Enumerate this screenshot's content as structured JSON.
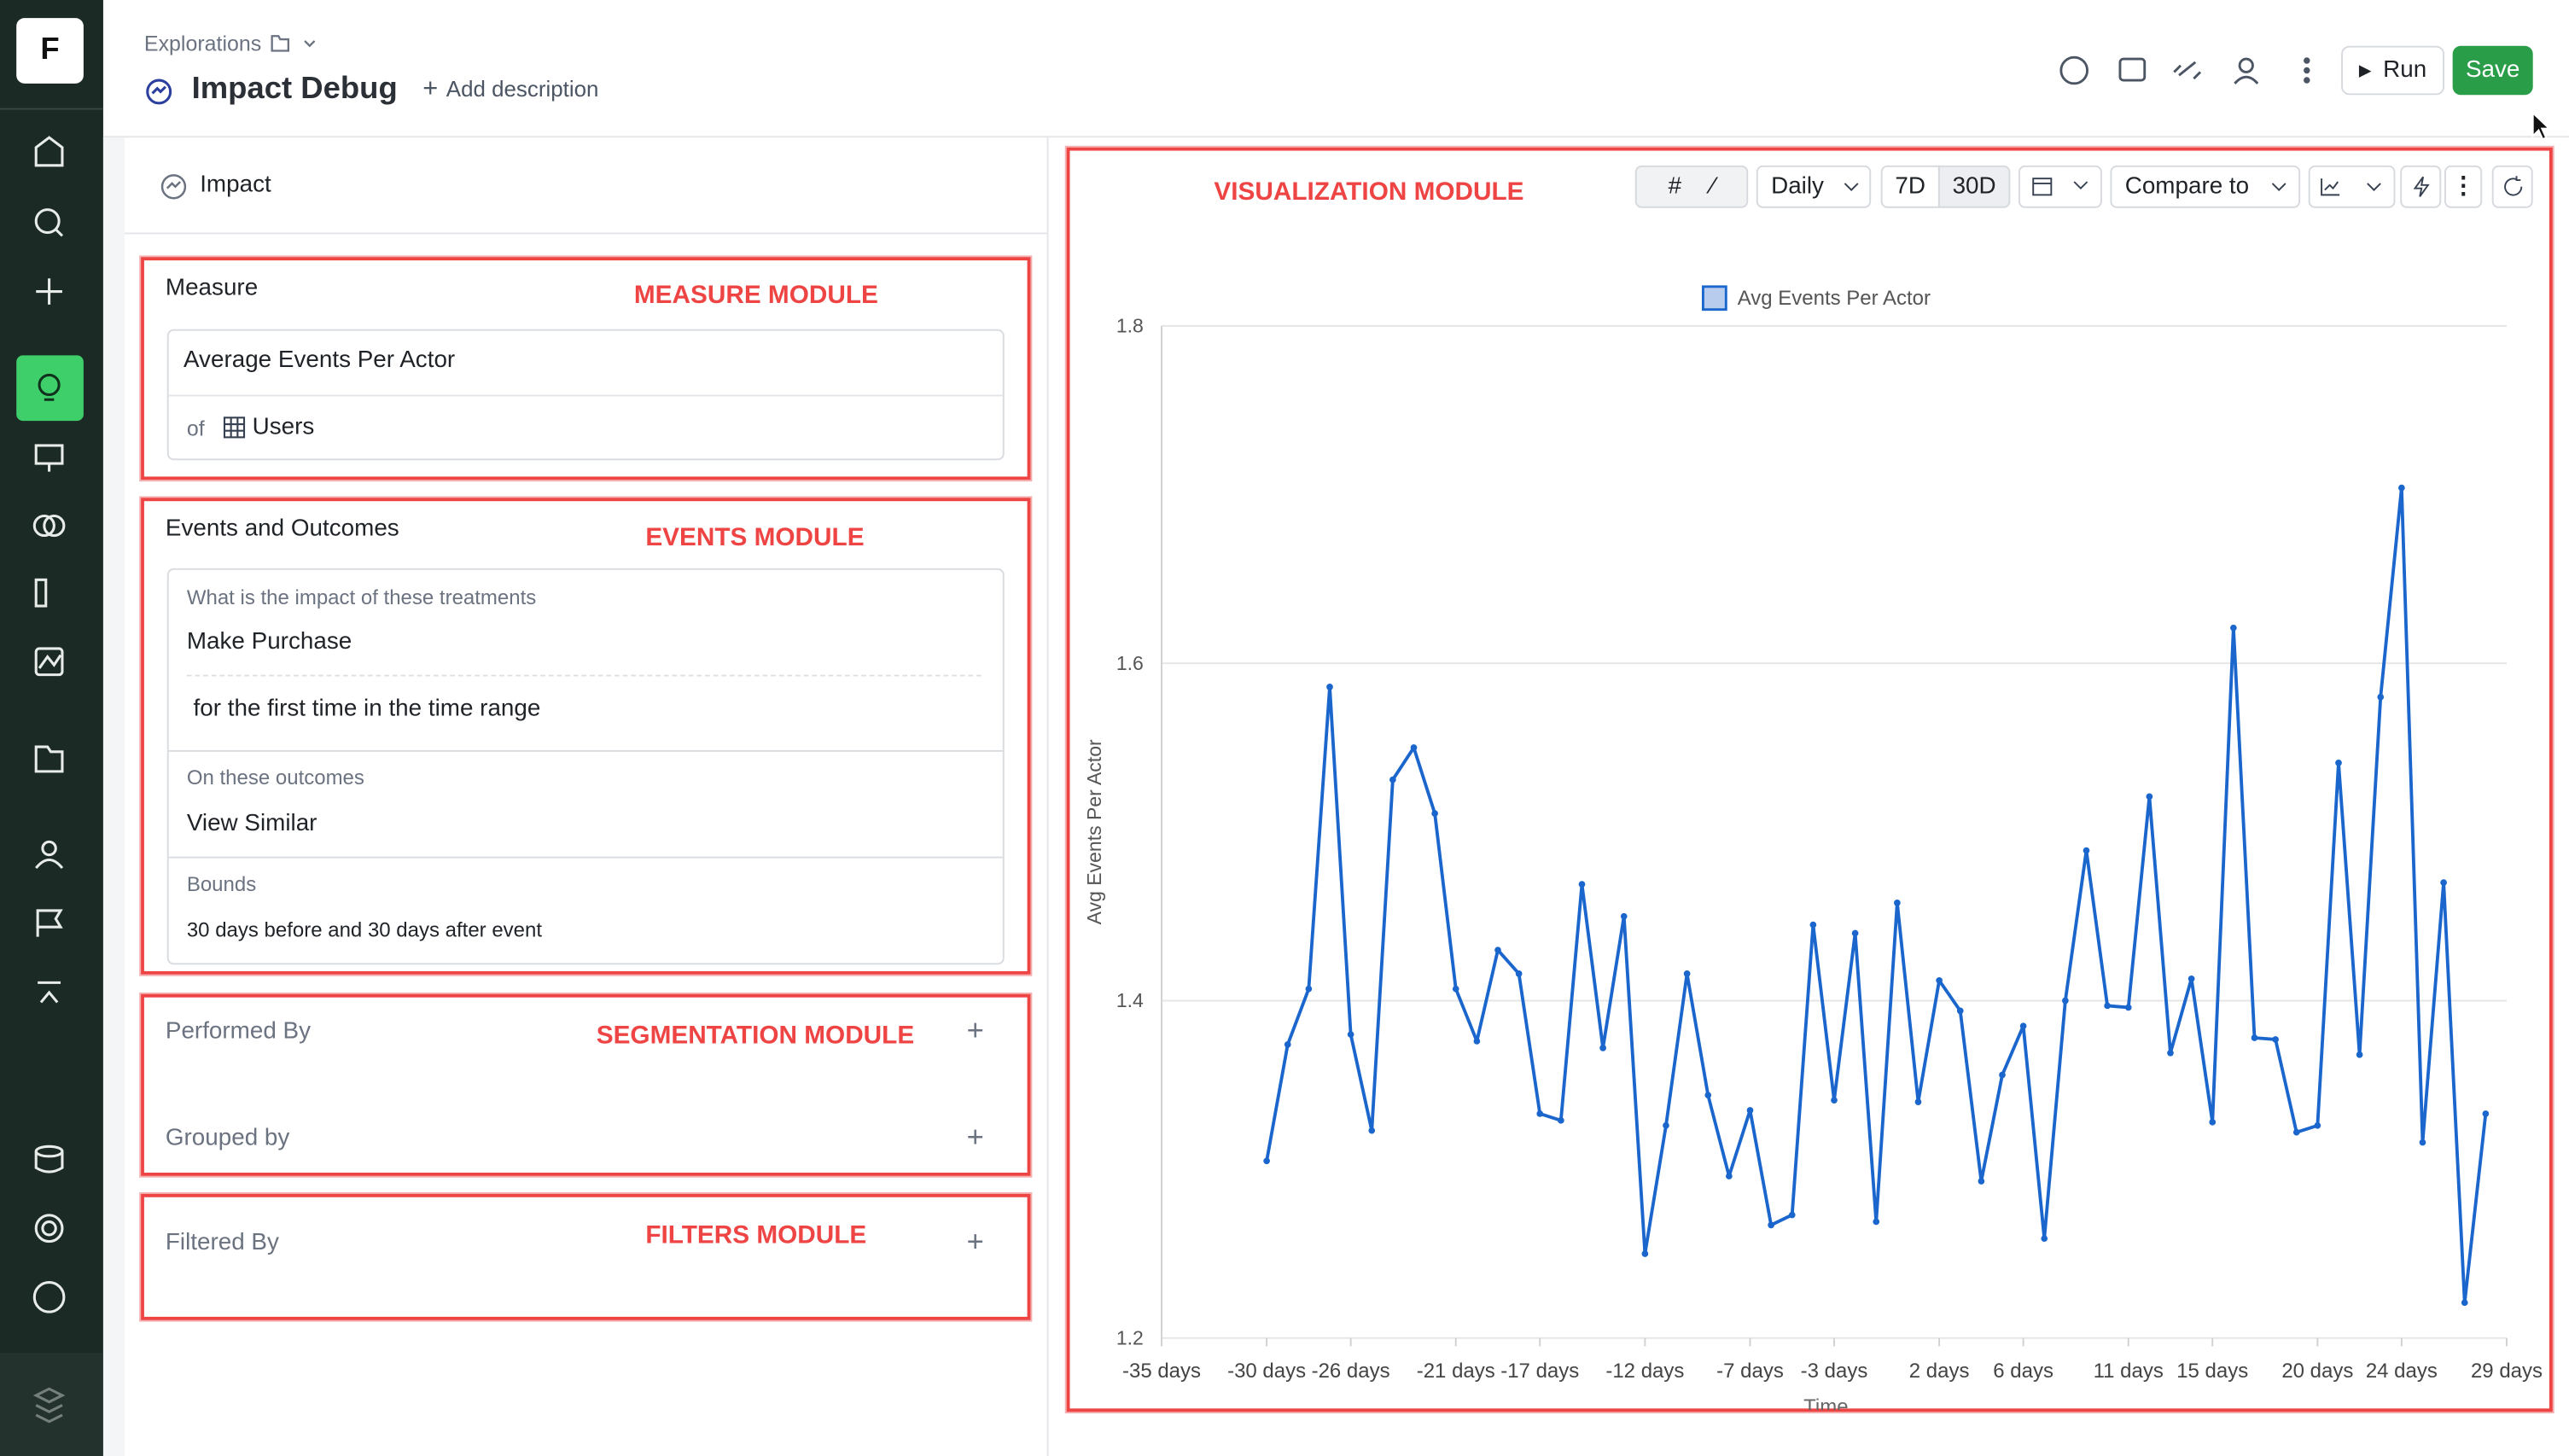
{
  "sidebar": {
    "logo": "F"
  },
  "header": {
    "breadcrumb": "Explorations",
    "title": "Impact Debug",
    "add_description": "Add description",
    "run": "Run",
    "save": "Save"
  },
  "left_panel": {
    "tab": "Impact",
    "measure": {
      "title": "Measure",
      "annotation": "MEASURE MODULE",
      "metric": "Average Events Per Actor",
      "of": "of",
      "entity": "Users"
    },
    "events": {
      "title": "Events and Outcomes",
      "annotation": "EVENTS MODULE",
      "treatments_label": "What is the impact of these treatments",
      "treatment": "Make Purchase",
      "treatment_condition": "for the first time in the time range",
      "outcomes_label": "On these outcomes",
      "outcome": "View Similar",
      "bounds_label": "Bounds",
      "bounds": "30 days before and 30 days after event"
    },
    "segmentation": {
      "performed_by": "Performed By",
      "annotation": "SEGMENTATION MODULE",
      "grouped_by": "Grouped by"
    },
    "filters": {
      "filtered_by": "Filtered By",
      "annotation": "FILTERS MODULE"
    }
  },
  "visualization": {
    "annotation": "VISUALIZATION MODULE",
    "toolbar": {
      "granularity": "Daily",
      "range_7d": "7D",
      "range_30d": "30D",
      "compare": "Compare to"
    }
  },
  "chart_data": {
    "type": "line",
    "xlabel": "Time",
    "ylabel": "Avg Events Per Actor",
    "x": [
      -30,
      -29,
      -28,
      -27,
      -26,
      -25,
      -24,
      -23,
      -22,
      -21,
      -20,
      -19,
      -18,
      -17,
      -16,
      -15,
      -14,
      -13,
      -12,
      -11,
      -10,
      -9,
      -8,
      -7,
      -6,
      -5,
      -4,
      -3,
      -2,
      -1,
      0,
      1,
      2,
      3,
      4,
      5,
      6,
      7,
      8,
      9,
      10,
      11,
      12,
      13,
      14,
      15,
      16,
      17,
      18,
      19,
      20,
      21,
      22,
      23,
      24,
      25,
      26,
      27,
      28
    ],
    "series": [
      {
        "name": "Avg Events Per Actor",
        "color": "#1a66cc",
        "values": [
          1.305,
          1.374,
          1.407,
          1.586,
          1.38,
          1.323,
          1.531,
          1.55,
          1.511,
          1.407,
          1.376,
          1.43,
          1.416,
          1.333,
          1.329,
          1.469,
          1.372,
          1.45,
          1.25,
          1.326,
          1.416,
          1.344,
          1.296,
          1.335,
          1.267,
          1.273,
          1.445,
          1.341,
          1.44,
          1.269,
          1.458,
          1.34,
          1.412,
          1.394,
          1.293,
          1.356,
          1.385,
          1.259,
          1.4,
          1.489,
          1.397,
          1.396,
          1.521,
          1.369,
          1.413,
          1.328,
          1.621,
          1.378,
          1.377,
          1.322,
          1.326,
          1.541,
          1.368,
          1.58,
          1.704,
          1.316,
          1.47,
          1.221,
          1.333
        ]
      }
    ],
    "xlim": [
      -35,
      29
    ],
    "xticks": [
      {
        "value": -35,
        "label": "-35 days"
      },
      {
        "value": -30,
        "label": "-30 days"
      },
      {
        "value": -26,
        "label": "-26 days"
      },
      {
        "value": -21,
        "label": "-21 days"
      },
      {
        "value": -17,
        "label": "-17 days"
      },
      {
        "value": -12,
        "label": "-12 days"
      },
      {
        "value": -7,
        "label": "-7 days"
      },
      {
        "value": -3,
        "label": "-3 days"
      },
      {
        "value": 2,
        "label": "2 days"
      },
      {
        "value": 6,
        "label": "6 days"
      },
      {
        "value": 11,
        "label": "11 days"
      },
      {
        "value": 15,
        "label": "15 days"
      },
      {
        "value": 20,
        "label": "20 days"
      },
      {
        "value": 24,
        "label": "24 days"
      },
      {
        "value": 29,
        "label": "29 days"
      }
    ],
    "ylim": [
      1.2,
      1.8
    ],
    "yticks": [
      1.2,
      1.4,
      1.6,
      1.8
    ],
    "grid": true,
    "legend": "top"
  }
}
